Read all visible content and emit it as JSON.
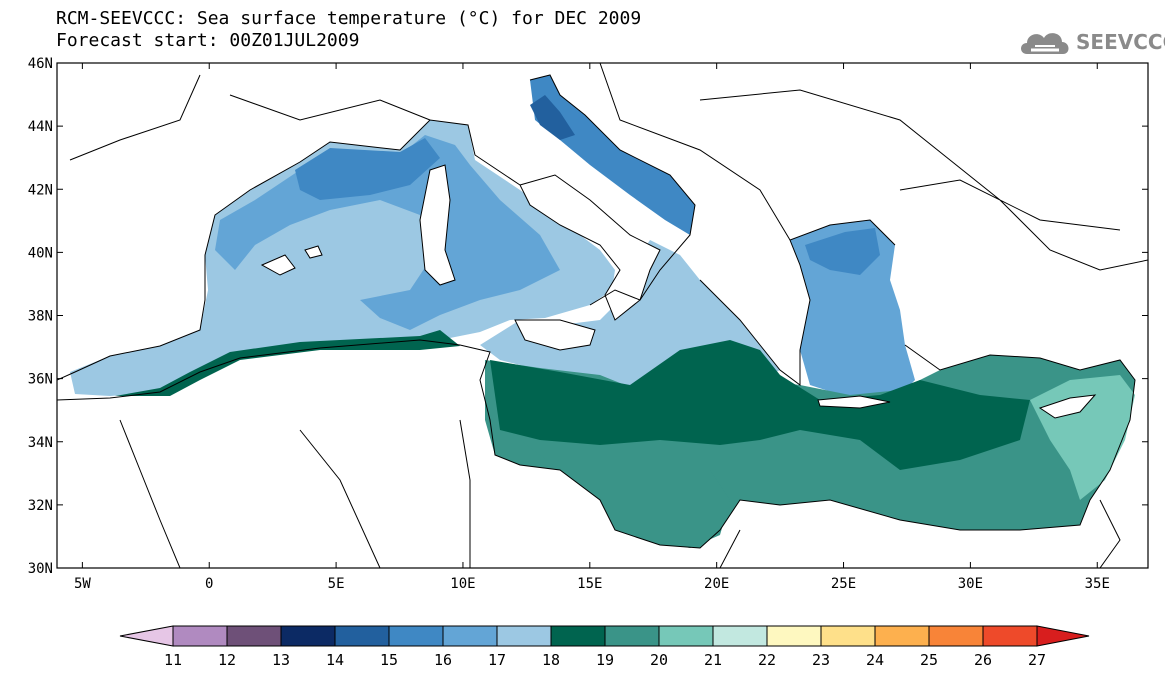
{
  "title": "RCM-SEEVCCC: Sea surface temperature (°C) for DEC 2009",
  "subtitle": "Forecast start: 00Z01JUL2009",
  "logo": {
    "text": "SEEVCCC",
    "icon": "cloud-icon",
    "color": "#8a8a8a"
  },
  "map": {
    "lon_range": [
      -6,
      37
    ],
    "lat_range": [
      30,
      46
    ],
    "x_ticks": [
      {
        "value": -5,
        "label": "5W"
      },
      {
        "value": 0,
        "label": "0"
      },
      {
        "value": 5,
        "label": "5E"
      },
      {
        "value": 10,
        "label": "10E"
      },
      {
        "value": 15,
        "label": "15E"
      },
      {
        "value": 20,
        "label": "20E"
      },
      {
        "value": 25,
        "label": "25E"
      },
      {
        "value": 30,
        "label": "30E"
      },
      {
        "value": 35,
        "label": "35E"
      }
    ],
    "y_ticks": [
      {
        "value": 30,
        "label": "30N"
      },
      {
        "value": 32,
        "label": "32N"
      },
      {
        "value": 34,
        "label": "34N"
      },
      {
        "value": 36,
        "label": "36N"
      },
      {
        "value": 38,
        "label": "38N"
      },
      {
        "value": 40,
        "label": "40N"
      },
      {
        "value": 42,
        "label": "42N"
      },
      {
        "value": 44,
        "label": "44N"
      },
      {
        "value": 46,
        "label": "46N"
      }
    ]
  },
  "colorbar": {
    "labels": [
      "11",
      "12",
      "13",
      "14",
      "15",
      "16",
      "17",
      "18",
      "19",
      "20",
      "21",
      "22",
      "23",
      "24",
      "25",
      "26",
      "27"
    ],
    "under_color": "#e6c6e6",
    "over_color": "#d81e1e",
    "colors": [
      "#b08ac0",
      "#6e5078",
      "#0c2a64",
      "#22609e",
      "#3f88c4",
      "#63a5d6",
      "#9cc8e3",
      "#00644f",
      "#3a9488",
      "#76c8b8",
      "#c2e8e0",
      "#fef8c0",
      "#fee08a",
      "#fdb04e",
      "#f88438",
      "#ee4a2a"
    ]
  },
  "field_colors": {
    "t14": "#22609e",
    "t15": "#3f88c4",
    "t16": "#63a5d6",
    "t17": "#9cc8e3",
    "t18": "#00644f",
    "t19": "#3a9488",
    "t20": "#76c8b8"
  }
}
